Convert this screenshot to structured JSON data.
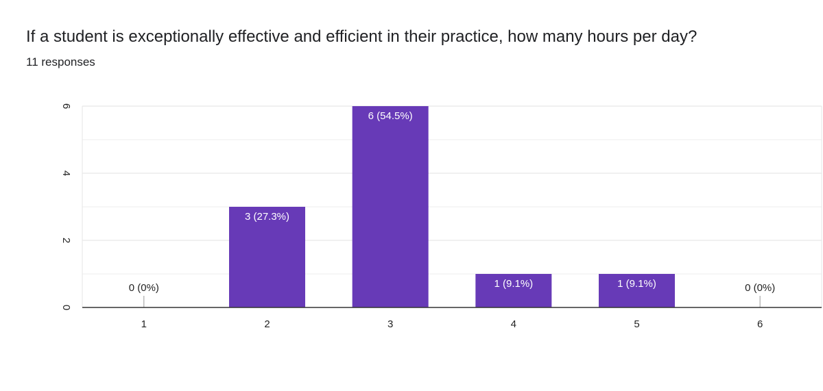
{
  "question": "If a student is exceptionally effective and efficient in their practice, how many hours per day?",
  "response_count": "11 responses",
  "colors": {
    "bar": "#673ab7",
    "grid": "#e6e6e6",
    "axis": "#333333",
    "label_inside": "#ffffff",
    "label_outside": "#222222"
  },
  "chart_data": {
    "type": "bar",
    "categories": [
      "1",
      "2",
      "3",
      "4",
      "5",
      "6"
    ],
    "values": [
      0,
      3,
      6,
      1,
      1,
      0
    ],
    "labels": [
      "0 (0%)",
      "3 (27.3%)",
      "6 (54.5%)",
      "1 (9.1%)",
      "1 (9.1%)",
      "0 (0%)"
    ],
    "ylim": [
      0,
      6
    ],
    "yticks": [
      0,
      2,
      4,
      6
    ],
    "grid": true,
    "title": "",
    "xlabel": "",
    "ylabel": ""
  }
}
